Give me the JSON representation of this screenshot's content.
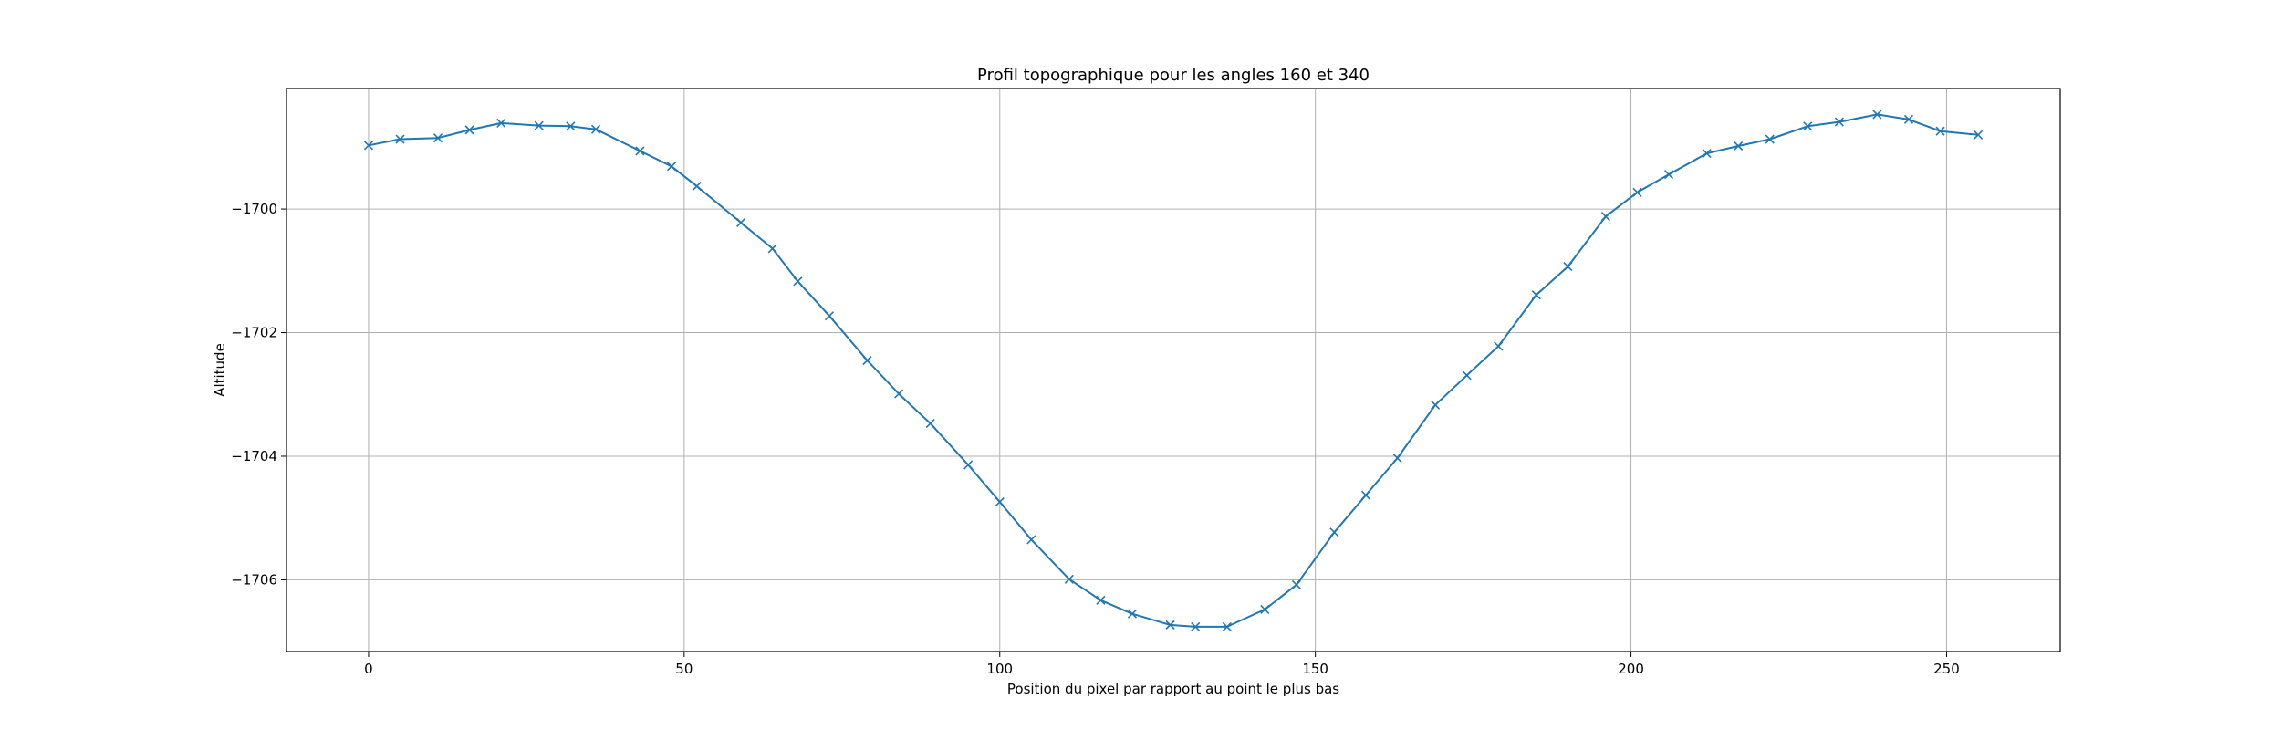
{
  "chart_data": {
    "type": "line",
    "title": "Profil topographique pour les angles 160 et 340",
    "xlabel": "Position du pixel par rapport au point le plus bas",
    "ylabel": "Altitude",
    "xlim": [
      -13,
      268
    ],
    "ylim": [
      -1707.16,
      -1698.05
    ],
    "xticks": [
      0,
      50,
      100,
      150,
      200,
      250
    ],
    "yticks": [
      -1700,
      -1702,
      -1704,
      -1706
    ],
    "xtick_labels": [
      "0",
      "50",
      "100",
      "150",
      "200",
      "250"
    ],
    "ytick_labels": [
      "−1700",
      "−1702",
      "−1704",
      "−1706"
    ],
    "grid": true,
    "marker": "x",
    "color": "#1f77b4",
    "series": [
      {
        "x": [
          0,
          5,
          11,
          16,
          21,
          27,
          32,
          36,
          43,
          48,
          52,
          59,
          64,
          68,
          73,
          79,
          84,
          89,
          95,
          100,
          105,
          111,
          116,
          121,
          127,
          131,
          136,
          142,
          147,
          153,
          158,
          163,
          169,
          174,
          179,
          185,
          190,
          196,
          201,
          206,
          212,
          217,
          222,
          228,
          233,
          239,
          244,
          249,
          255
        ],
        "y": [
          -1698.97,
          -1698.87,
          -1698.85,
          -1698.72,
          -1698.61,
          -1698.65,
          -1698.66,
          -1698.71,
          -1699.06,
          -1699.31,
          -1699.63,
          -1700.22,
          -1700.64,
          -1701.17,
          -1701.73,
          -1702.45,
          -1702.99,
          -1703.47,
          -1704.14,
          -1704.74,
          -1705.35,
          -1705.99,
          -1706.33,
          -1706.55,
          -1706.73,
          -1706.76,
          -1706.76,
          -1706.48,
          -1706.08,
          -1705.23,
          -1704.63,
          -1704.03,
          -1703.17,
          -1702.69,
          -1702.22,
          -1701.39,
          -1700.93,
          -1700.12,
          -1699.73,
          -1699.44,
          -1699.1,
          -1698.98,
          -1698.87,
          -1698.66,
          -1698.59,
          -1698.47,
          -1698.55,
          -1698.74,
          -1698.8
        ]
      }
    ]
  }
}
